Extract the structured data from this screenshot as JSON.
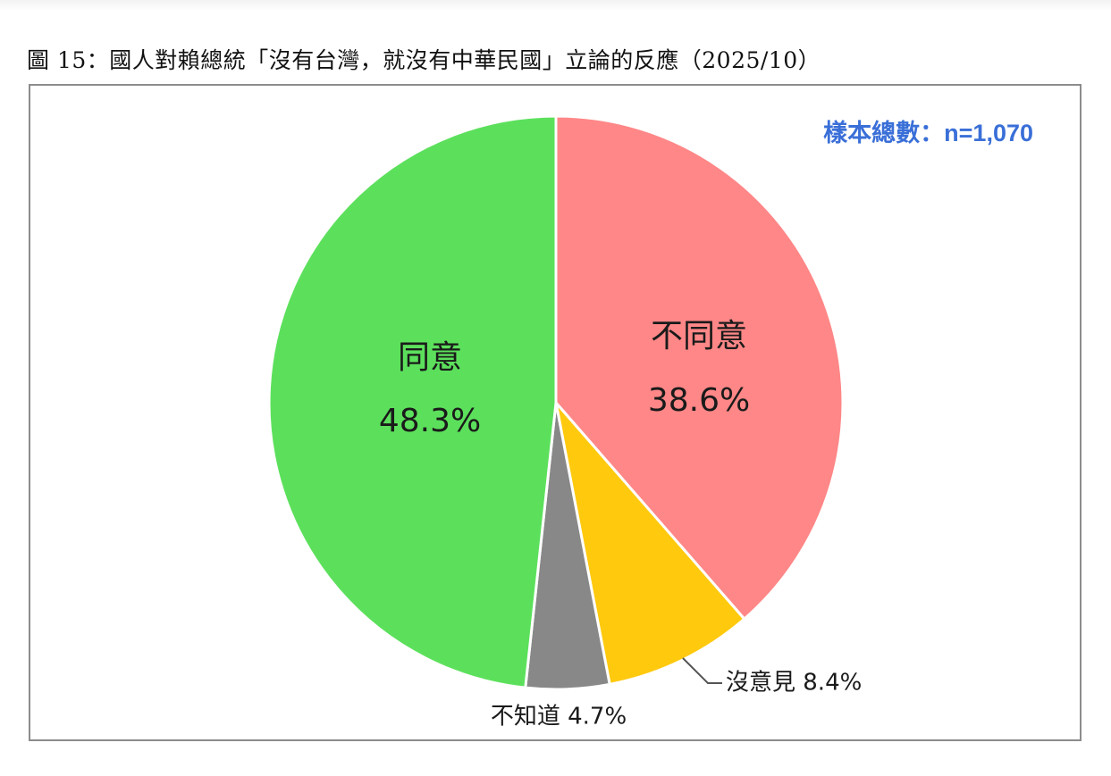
{
  "figure": {
    "title": "圖 15：國人對賴總統「沒有台灣，就沒有中華民國」立論的反應（2025/10）",
    "sample_note": "樣本總數：n=1,070"
  },
  "chart_data": {
    "type": "pie",
    "start_angle_deg": 0,
    "direction": "clockwise",
    "slices": [
      {
        "name": "不同意",
        "value": 38.6,
        "label": "38.6%",
        "color": "#ff8787"
      },
      {
        "name": "沒意見",
        "value": 8.4,
        "label": "沒意見 8.4%",
        "color": "#ffc90e"
      },
      {
        "name": "不知道",
        "value": 4.7,
        "label": "不知道 4.7%",
        "color": "#888888"
      },
      {
        "name": "同意",
        "value": 48.3,
        "label": "48.3%",
        "color": "#5ce05c"
      }
    ],
    "label_color": "#1a1a1a",
    "note_color": "#3a6fd8"
  }
}
